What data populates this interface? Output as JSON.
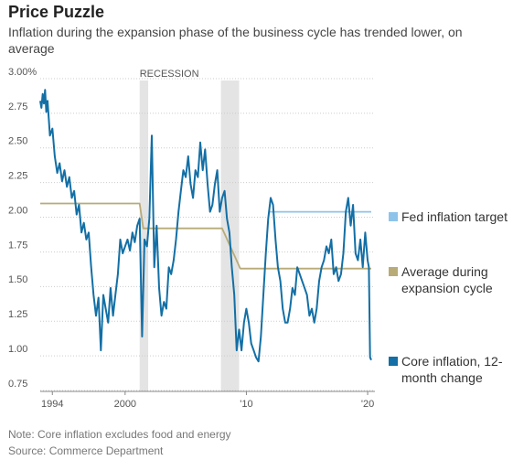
{
  "chart_data": {
    "type": "line",
    "title": "Price Puzzle",
    "subtitle": "Inflation during the expansion phase of the business cycle has trended lower, on average",
    "annotations": [
      "RECESSION"
    ],
    "recessions": [
      [
        2001.2,
        2001.9
      ],
      [
        2007.9,
        2009.4
      ]
    ],
    "notes": [
      "Note: Core inflation excludes food and energy",
      "Source: Commerce Department"
    ],
    "xlim": [
      1993,
      2020.6
    ],
    "xticks": [
      1994,
      2000,
      {
        "value": 2010,
        "label": "'10"
      },
      {
        "value": 2020,
        "label": "'20"
      }
    ],
    "ylim": [
      0.75,
      3.0
    ],
    "yticks": [
      {
        "value": 3.0,
        "label": "3.00%"
      },
      2.75,
      {
        "value": 2.5,
        "label": "2.50"
      },
      2.25,
      {
        "value": 2.0,
        "label": "2.00"
      },
      1.75,
      {
        "value": 1.5,
        "label": "1.50"
      },
      1.25,
      {
        "value": 1.0,
        "label": "1.00"
      },
      0.75
    ],
    "grid": true,
    "series": [
      {
        "name": "Fed inflation target",
        "color": "#8ec3ea",
        "x": [
          2011.8,
          2020.3
        ],
        "values": [
          2.0,
          2.0
        ]
      },
      {
        "name": "Average during expansion cycle",
        "color": "#b8ab78",
        "x": [
          1993.0,
          2001.2,
          2001.5,
          2008.0,
          2009.5,
          2020.3
        ],
        "values": [
          2.06,
          2.06,
          1.88,
          1.88,
          1.59,
          1.59
        ]
      },
      {
        "name": "Core inflation, 12-month change",
        "color": "#136fa5",
        "x": [
          1993.0,
          1993.1,
          1993.2,
          1993.3,
          1993.4,
          1993.5,
          1993.6,
          1993.8,
          1994.0,
          1994.2,
          1994.4,
          1994.6,
          1994.8,
          1995.0,
          1995.2,
          1995.4,
          1995.6,
          1995.8,
          1996.0,
          1996.2,
          1996.4,
          1996.6,
          1996.8,
          1997.0,
          1997.2,
          1997.4,
          1997.6,
          1997.8,
          1998.0,
          1998.2,
          1998.4,
          1998.6,
          1998.8,
          1999.0,
          1999.2,
          1999.4,
          1999.6,
          1999.8,
          2000.0,
          2000.2,
          2000.4,
          2000.6,
          2000.8,
          2001.0,
          2001.2,
          2001.4,
          2001.6,
          2001.8,
          2002.0,
          2002.2,
          2002.4,
          2002.6,
          2002.8,
          2003.0,
          2003.2,
          2003.4,
          2003.6,
          2003.8,
          2004.0,
          2004.2,
          2004.4,
          2004.6,
          2004.8,
          2005.0,
          2005.2,
          2005.4,
          2005.6,
          2005.8,
          2006.0,
          2006.2,
          2006.4,
          2006.6,
          2006.8,
          2007.0,
          2007.2,
          2007.4,
          2007.6,
          2007.8,
          2008.0,
          2008.2,
          2008.4,
          2008.6,
          2008.8,
          2009.0,
          2009.2,
          2009.4,
          2009.6,
          2009.8,
          2010.0,
          2010.2,
          2010.4,
          2010.6,
          2010.8,
          2011.0,
          2011.2,
          2011.4,
          2011.6,
          2011.8,
          2012.0,
          2012.2,
          2012.4,
          2012.6,
          2012.8,
          2013.0,
          2013.2,
          2013.4,
          2013.6,
          2013.8,
          2014.0,
          2014.2,
          2014.4,
          2014.6,
          2014.8,
          2015.0,
          2015.2,
          2015.4,
          2015.6,
          2015.8,
          2016.0,
          2016.2,
          2016.4,
          2016.6,
          2016.8,
          2017.0,
          2017.2,
          2017.4,
          2017.6,
          2017.8,
          2018.0,
          2018.2,
          2018.4,
          2018.6,
          2018.8,
          2019.0,
          2019.2,
          2019.4,
          2019.6,
          2019.8,
          2020.0,
          2020.1,
          2020.2,
          2020.3
        ],
        "values": [
          2.8,
          2.75,
          2.85,
          2.78,
          2.88,
          2.72,
          2.8,
          2.55,
          2.6,
          2.4,
          2.28,
          2.35,
          2.22,
          2.3,
          2.18,
          2.25,
          2.1,
          2.15,
          1.98,
          2.05,
          1.85,
          1.92,
          1.8,
          1.85,
          1.6,
          1.4,
          1.25,
          1.38,
          1.0,
          1.4,
          1.3,
          1.2,
          1.45,
          1.25,
          1.4,
          1.55,
          1.8,
          1.7,
          1.75,
          1.8,
          1.72,
          1.85,
          1.78,
          1.9,
          1.95,
          1.1,
          1.8,
          1.75,
          1.95,
          2.55,
          1.6,
          1.9,
          1.45,
          1.25,
          1.35,
          1.3,
          1.6,
          1.55,
          1.65,
          1.8,
          2.0,
          2.15,
          2.3,
          2.25,
          2.4,
          2.2,
          2.1,
          2.3,
          2.25,
          2.5,
          2.3,
          2.45,
          2.2,
          2.0,
          2.05,
          2.2,
          2.3,
          2.0,
          2.1,
          2.15,
          1.95,
          1.85,
          1.6,
          1.4,
          1.0,
          1.15,
          1.0,
          1.2,
          1.3,
          1.2,
          1.05,
          1.0,
          0.95,
          0.92,
          1.1,
          1.4,
          1.7,
          1.95,
          2.1,
          2.05,
          1.8,
          1.6,
          1.5,
          1.3,
          1.2,
          1.2,
          1.3,
          1.45,
          1.4,
          1.6,
          1.55,
          1.5,
          1.45,
          1.4,
          1.25,
          1.3,
          1.2,
          1.3,
          1.5,
          1.6,
          1.65,
          1.75,
          1.7,
          1.8,
          1.55,
          1.6,
          1.5,
          1.55,
          1.7,
          2.0,
          2.1,
          1.9,
          2.05,
          1.7,
          1.65,
          1.8,
          1.6,
          1.85,
          1.65,
          1.6,
          0.95,
          0.93
        ]
      }
    ]
  }
}
